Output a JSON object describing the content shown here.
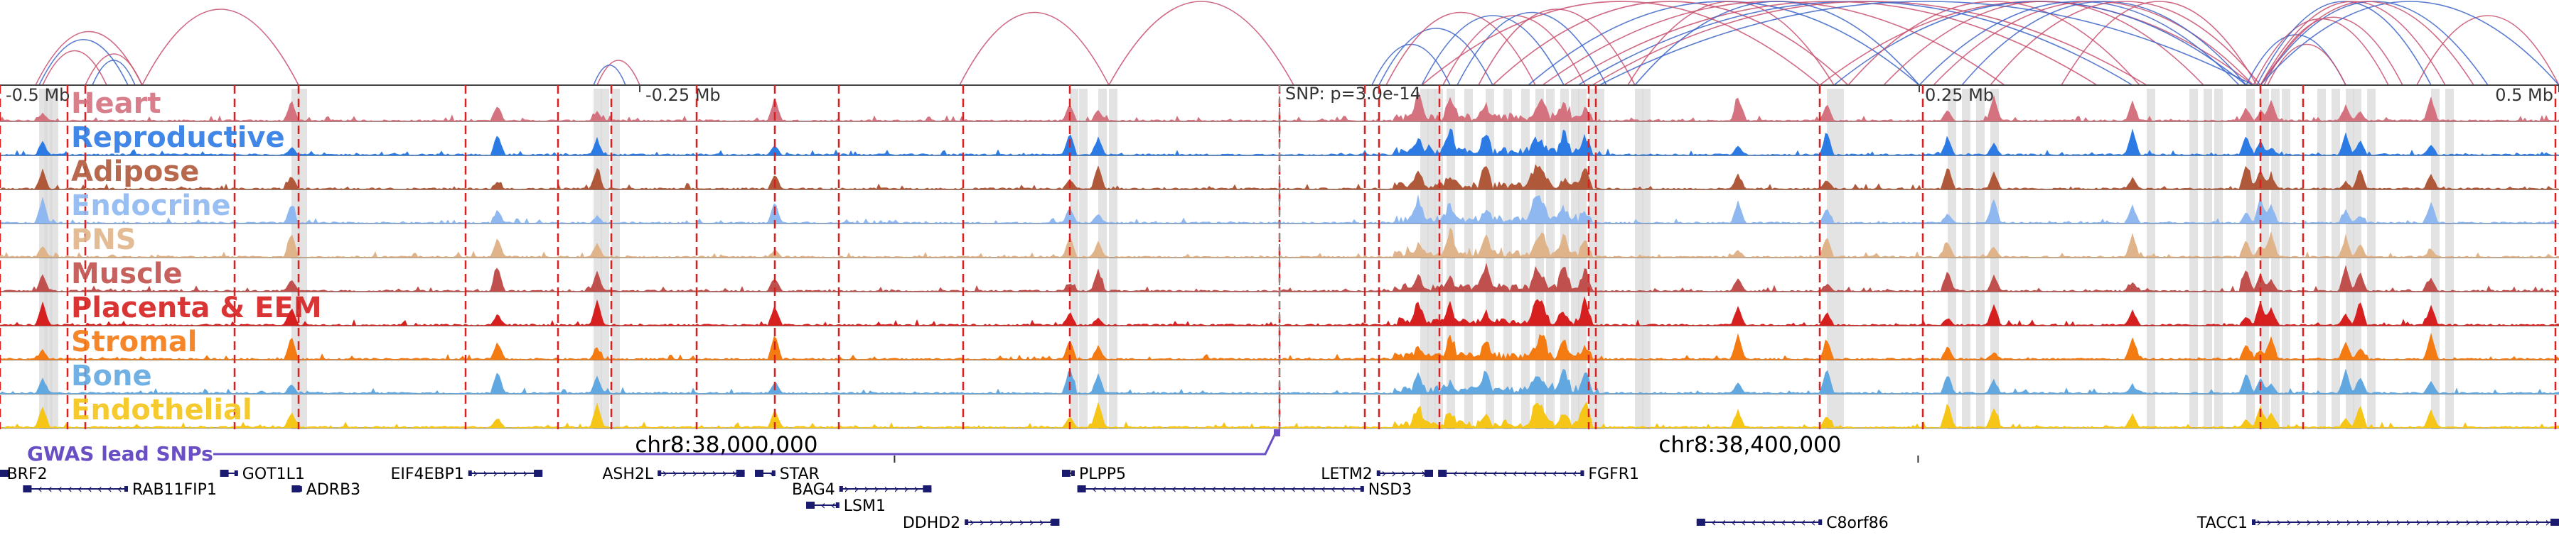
{
  "ruler": {
    "ticks": [
      {
        "label": "-0.5 Mb",
        "pos": 0.0
      },
      {
        "label": "-0.25 Mb",
        "pos": 0.25
      },
      {
        "label": "0.25 Mb",
        "pos": 0.75
      },
      {
        "label": "0.5 Mb",
        "pos": 1.0
      }
    ],
    "snp_label": "SNP: p=3.0e-14",
    "snp_pos": 0.5
  },
  "tracks": [
    {
      "name": "Heart",
      "color": "#d4727f"
    },
    {
      "name": "Reproductive",
      "color": "#2c7be5"
    },
    {
      "name": "Adipose",
      "color": "#b0583a"
    },
    {
      "name": "Endocrine",
      "color": "#8fb8f0"
    },
    {
      "name": "PNS",
      "color": "#e0b48a"
    },
    {
      "name": "Muscle",
      "color": "#c0504d"
    },
    {
      "name": "Placenta & EEM",
      "color": "#d62020"
    },
    {
      "name": "Stromal",
      "color": "#f47a12"
    },
    {
      "name": "Bone",
      "color": "#62a8e0"
    },
    {
      "name": "Endothelial",
      "color": "#f5c518"
    }
  ],
  "gwas": {
    "label": "GWAS lead SNPs",
    "color": "#6a4fc4"
  },
  "coordinates": [
    {
      "label": "chr8:38,000,000",
      "pos": 0.294
    },
    {
      "label": "chr8:38,400,000",
      "pos": 0.694
    }
  ],
  "genes": [
    {
      "name": "BRF2",
      "start": 0.0,
      "end": 0.001,
      "row": 0,
      "strand": "-",
      "label_side": "right"
    },
    {
      "name": "RAB11FIP1",
      "start": 0.009,
      "end": 0.05,
      "row": 1,
      "strand": "-",
      "label_side": "right"
    },
    {
      "name": "GOT1L1",
      "start": 0.086,
      "end": 0.093,
      "row": 0,
      "strand": "-",
      "label_side": "right"
    },
    {
      "name": "ADRB3",
      "start": 0.114,
      "end": 0.118,
      "row": 1,
      "strand": "-",
      "label_side": "right"
    },
    {
      "name": "EIF4EBP1",
      "start": 0.183,
      "end": 0.212,
      "row": 0,
      "strand": "+",
      "label_side": "left"
    },
    {
      "name": "ASH2L",
      "start": 0.257,
      "end": 0.291,
      "row": 0,
      "strand": "+",
      "label_side": "left"
    },
    {
      "name": "STAR",
      "start": 0.295,
      "end": 0.303,
      "row": 0,
      "strand": "-",
      "label_side": "right"
    },
    {
      "name": "BAG4",
      "start": 0.328,
      "end": 0.364,
      "row": 1,
      "strand": "+",
      "label_side": "left"
    },
    {
      "name": "LSM1",
      "start": 0.315,
      "end": 0.328,
      "row": 2,
      "strand": "-",
      "label_side": "right"
    },
    {
      "name": "DDHD2",
      "start": 0.377,
      "end": 0.414,
      "row": 3,
      "strand": "+",
      "label_side": "left"
    },
    {
      "name": "PLPP5",
      "start": 0.415,
      "end": 0.42,
      "row": 0,
      "strand": "-",
      "label_side": "right"
    },
    {
      "name": "NSD3",
      "start": 0.421,
      "end": 0.533,
      "row": 1,
      "strand": "-",
      "label_side": "right"
    },
    {
      "name": "LETM2",
      "start": 0.538,
      "end": 0.56,
      "row": 0,
      "strand": "+",
      "label_side": "left"
    },
    {
      "name": "FGFR1",
      "start": 0.562,
      "end": 0.619,
      "row": 0,
      "strand": "-",
      "label_side": "right"
    },
    {
      "name": "C8orf86",
      "start": 0.663,
      "end": 0.712,
      "row": 3,
      "strand": "-",
      "label_side": "right"
    },
    {
      "name": "TACC1",
      "start": 0.88,
      "end": 1.0,
      "row": 3,
      "strand": "+",
      "label_side": "left"
    }
  ],
  "colors": {
    "arc_red": "#c8506e",
    "arc_blue": "#3c64c8",
    "highlight_red": "#dc1e1e",
    "gene": "#1a1a6e"
  }
}
